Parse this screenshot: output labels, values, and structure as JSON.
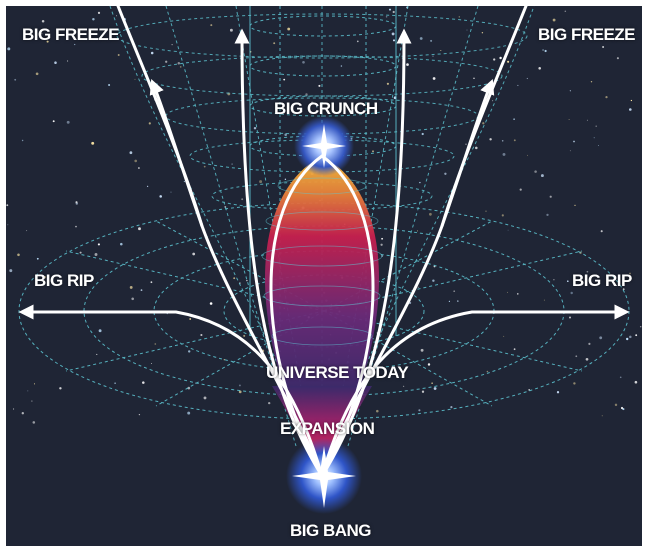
{
  "labels": {
    "big_freeze_left": "BIG FREEZE",
    "big_freeze_right": "BIG FREEZE",
    "big_crunch": "BIG CRUNCH",
    "big_rip_left": "BIG RIP",
    "big_rip_right": "BIG RIP",
    "universe_today": "UNIVERSE TODAY",
    "expansion": "EXPANSION",
    "big_bang": "BIG BANG"
  },
  "colors": {
    "background": "#1f2535",
    "grid": "#5fc9d6",
    "arrows": "#ffffff",
    "crunch_top": "#f0b830",
    "crunch_mid": "#d0205a",
    "crunch_low": "#5a2a80",
    "bang_glow": "#3a6ad8"
  }
}
